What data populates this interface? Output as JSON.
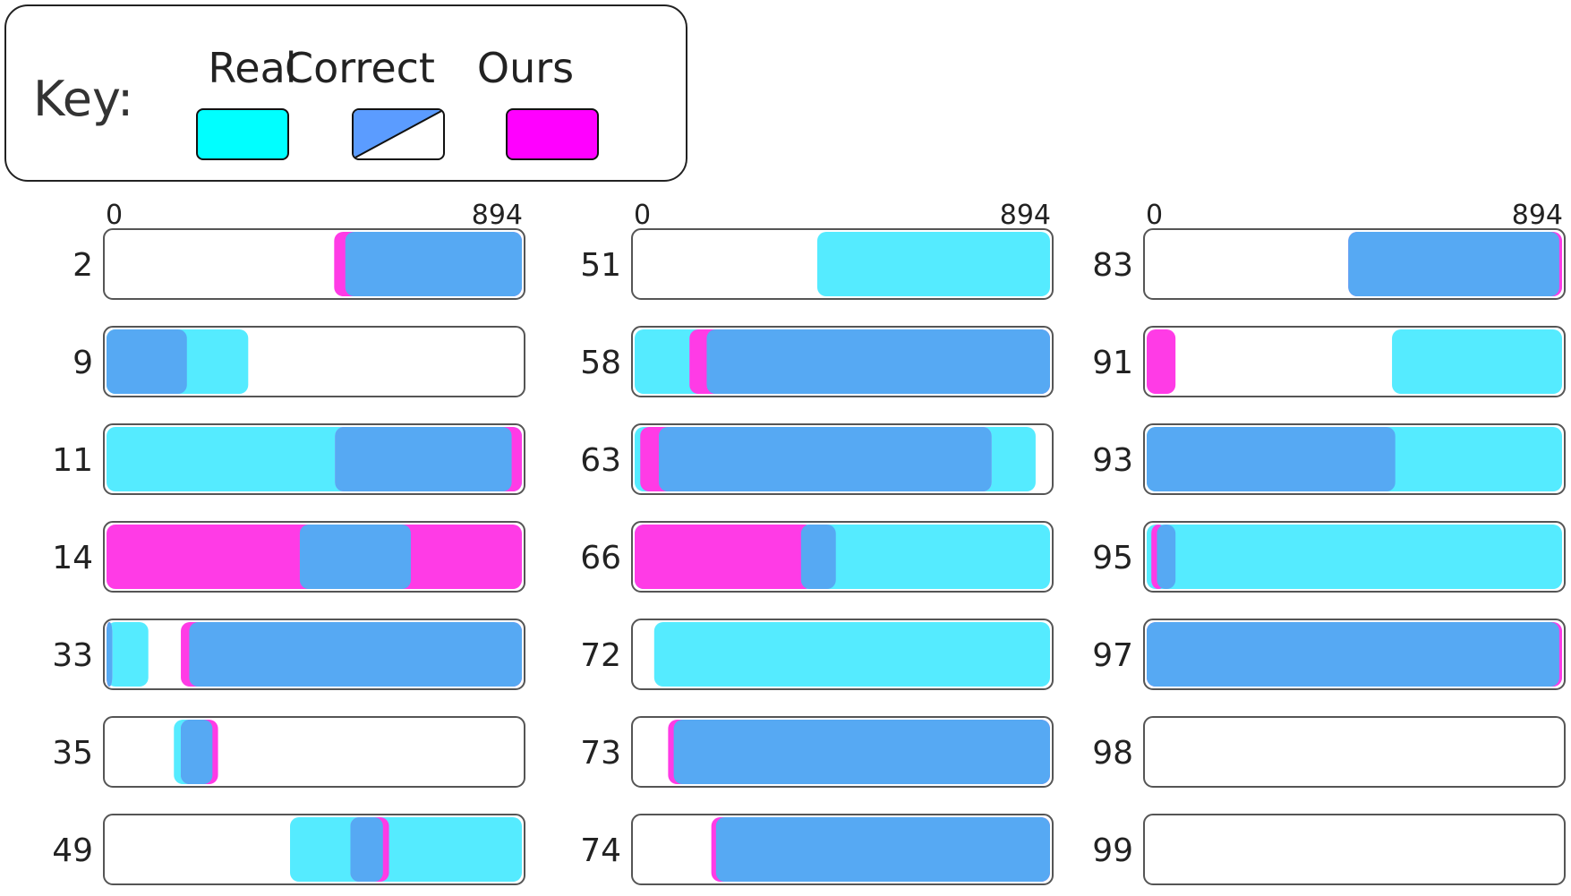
{
  "legend": {
    "title": "Key:",
    "items": [
      {
        "label": "Real",
        "color": "#00ffff"
      },
      {
        "label": "Correct",
        "color": "#5b9cff"
      },
      {
        "label": "Ours",
        "color": "#ff00ff"
      }
    ]
  },
  "chart_data": {
    "type": "bar",
    "layout": "small-multiples-horizontal-ranges",
    "xlim": [
      0,
      894
    ],
    "tick_labels": [
      "0",
      "894"
    ],
    "colors": {
      "real": "#55ebff",
      "correct": "#56a9f3",
      "ours": "#ff3be6"
    },
    "columns": [
      {
        "rows": [
          {
            "id": "2",
            "real": [],
            "ours": [
              [
                490,
                894
              ]
            ],
            "correct": [
              [
                514,
                894
              ]
            ]
          },
          {
            "id": "9",
            "real": [
              [
                0,
                305
              ]
            ],
            "ours": [],
            "correct": [
              [
                0,
                173
              ]
            ]
          },
          {
            "id": "11",
            "real": [
              [
                0,
                894
              ]
            ],
            "ours": [
              [
                492,
                894
              ]
            ],
            "correct": [
              [
                492,
                872
              ]
            ]
          },
          {
            "id": "14",
            "real": [],
            "ours": [
              [
                0,
                894
              ]
            ],
            "correct": [
              [
                416,
                655
              ]
            ]
          },
          {
            "id": "33",
            "real": [
              [
                0,
                90
              ]
            ],
            "ours": [
              [
                0,
                12
              ],
              [
                160,
                894
              ]
            ],
            "correct": [
              [
                0,
                12
              ],
              [
                178,
                894
              ]
            ]
          },
          {
            "id": "35",
            "real": [
              [
                145,
                228
              ]
            ],
            "ours": [
              [
                160,
                240
              ]
            ],
            "correct": [
              [
                160,
                228
              ]
            ]
          },
          {
            "id": "49",
            "real": [
              [
                395,
                894
              ]
            ],
            "ours": [
              [
                525,
                608
              ]
            ],
            "correct": [
              [
                525,
                595
              ]
            ]
          }
        ]
      },
      {
        "rows": [
          {
            "id": "51",
            "real": [
              [
                393,
                894
              ]
            ],
            "ours": [],
            "correct": []
          },
          {
            "id": "58",
            "real": [
              [
                0,
                894
              ]
            ],
            "ours": [
              [
                118,
                894
              ]
            ],
            "correct": [
              [
                155,
                894
              ]
            ]
          },
          {
            "id": "63",
            "real": [
              [
                0,
                863
              ]
            ],
            "ours": [
              [
                12,
                768
              ]
            ],
            "correct": [
              [
                52,
                768
              ]
            ]
          },
          {
            "id": "66",
            "real": [
              [
                0,
                894
              ]
            ],
            "ours": [
              [
                0,
                385
              ]
            ],
            "correct": [
              [
                358,
                433
              ]
            ]
          },
          {
            "id": "72",
            "real": [
              [
                42,
                894
              ]
            ],
            "ours": [],
            "correct": []
          },
          {
            "id": "73",
            "real": [],
            "ours": [
              [
                72,
                894
              ]
            ],
            "correct": [
              [
                84,
                894
              ]
            ]
          },
          {
            "id": "74",
            "real": [],
            "ours": [
              [
                165,
                894
              ]
            ],
            "correct": [
              [
                175,
                894
              ]
            ]
          }
        ]
      },
      {
        "rows": [
          {
            "id": "83",
            "real": [
              [
                434,
                894
              ]
            ],
            "ours": [
              [
                434,
                894
              ]
            ],
            "correct": [
              [
                434,
                888
              ]
            ]
          },
          {
            "id": "91",
            "real": [
              [
                528,
                894
              ]
            ],
            "ours": [
              [
                0,
                62
              ]
            ],
            "correct": []
          },
          {
            "id": "93",
            "real": [
              [
                0,
                894
              ]
            ],
            "ours": [],
            "correct": [
              [
                0,
                535
              ]
            ]
          },
          {
            "id": "95",
            "real": [
              [
                0,
                894
              ]
            ],
            "ours": [
              [
                10,
                40
              ]
            ],
            "correct": [
              [
                22,
                62
              ]
            ]
          },
          {
            "id": "97",
            "real": [
              [
                0,
                894
              ]
            ],
            "ours": [
              [
                0,
                894
              ]
            ],
            "correct": [
              [
                0,
                888
              ]
            ]
          },
          {
            "id": "98",
            "real": [],
            "ours": [],
            "correct": []
          },
          {
            "id": "99",
            "real": [],
            "ours": [],
            "correct": []
          }
        ]
      }
    ]
  }
}
